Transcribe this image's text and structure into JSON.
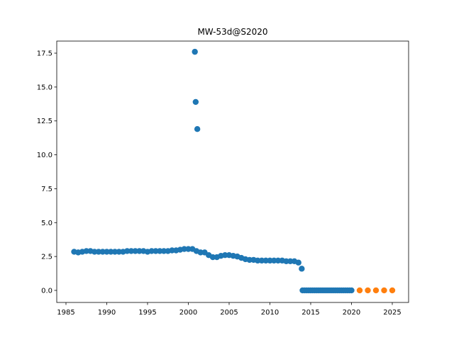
{
  "chart_data": {
    "type": "scatter",
    "title": "MW-53d@S2020",
    "series": [
      {
        "color": "#1f77b4",
        "x": [
          1986,
          1986.5,
          1987,
          1987.5,
          1988,
          1988.5,
          1989,
          1989.5,
          1990,
          1990.5,
          1991,
          1991.5,
          1992,
          1992.5,
          1993,
          1993.5,
          1994,
          1994.5,
          1995,
          1995.5,
          1996,
          1996.5,
          1997,
          1997.5,
          1998,
          1998.5,
          1999,
          1999.5,
          2000,
          2000.5,
          2000.8,
          2000.9,
          2001,
          2001.1,
          2001.5,
          2002,
          2002.5,
          2003,
          2003.5,
          2004,
          2004.5,
          2005,
          2005.5,
          2006,
          2006.5,
          2007,
          2007.5,
          2008,
          2008.5,
          2009,
          2009.5,
          2010,
          2010.5,
          2011,
          2011.5,
          2012,
          2012.5,
          2013,
          2013.5,
          2013.9,
          2014,
          2014.25,
          2014.5,
          2014.75,
          2015,
          2015.25,
          2015.5,
          2015.75,
          2016,
          2016.25,
          2016.5,
          2016.75,
          2017,
          2017.25,
          2017.5,
          2017.75,
          2018,
          2018.25,
          2018.5,
          2018.75,
          2019,
          2019.25,
          2019.5,
          2019.75,
          2020
        ],
        "values": [
          2.85,
          2.8,
          2.85,
          2.9,
          2.9,
          2.85,
          2.85,
          2.85,
          2.85,
          2.85,
          2.85,
          2.85,
          2.85,
          2.9,
          2.9,
          2.9,
          2.9,
          2.9,
          2.85,
          2.9,
          2.9,
          2.9,
          2.9,
          2.9,
          2.95,
          2.95,
          3.0,
          3.05,
          3.05,
          3.05,
          17.6,
          13.9,
          2.9,
          11.9,
          2.8,
          2.8,
          2.6,
          2.45,
          2.45,
          2.55,
          2.6,
          2.6,
          2.55,
          2.5,
          2.4,
          2.3,
          2.25,
          2.25,
          2.2,
          2.2,
          2.2,
          2.2,
          2.2,
          2.2,
          2.2,
          2.15,
          2.15,
          2.15,
          2.05,
          1.6,
          0,
          0,
          0,
          0,
          0,
          0,
          0,
          0,
          0,
          0,
          0,
          0,
          0,
          0,
          0,
          0,
          0,
          0,
          0,
          0,
          0,
          0,
          0,
          0,
          0
        ]
      },
      {
        "color": "#ff7f0e",
        "x": [
          2021,
          2022,
          2023,
          2024,
          2025
        ],
        "values": [
          0,
          0,
          0,
          0,
          0
        ]
      }
    ],
    "xlim": [
      1983.87,
      2027
    ],
    "xticks": [
      1985,
      1990,
      1995,
      2000,
      2005,
      2010,
      2015,
      2020,
      2025
    ],
    "ylim": [
      -0.89,
      18.39
    ],
    "yticks": [
      {
        "value": 0,
        "label": "0.0"
      },
      {
        "value": 2.5,
        "label": "2.5"
      },
      {
        "value": 5,
        "label": "5.0"
      },
      {
        "value": 7.5,
        "label": "7.5"
      },
      {
        "value": 10,
        "label": "10.0"
      },
      {
        "value": 12.5,
        "label": "12.5"
      },
      {
        "value": 15,
        "label": "15.0"
      },
      {
        "value": 17.5,
        "label": "17.5"
      }
    ]
  }
}
